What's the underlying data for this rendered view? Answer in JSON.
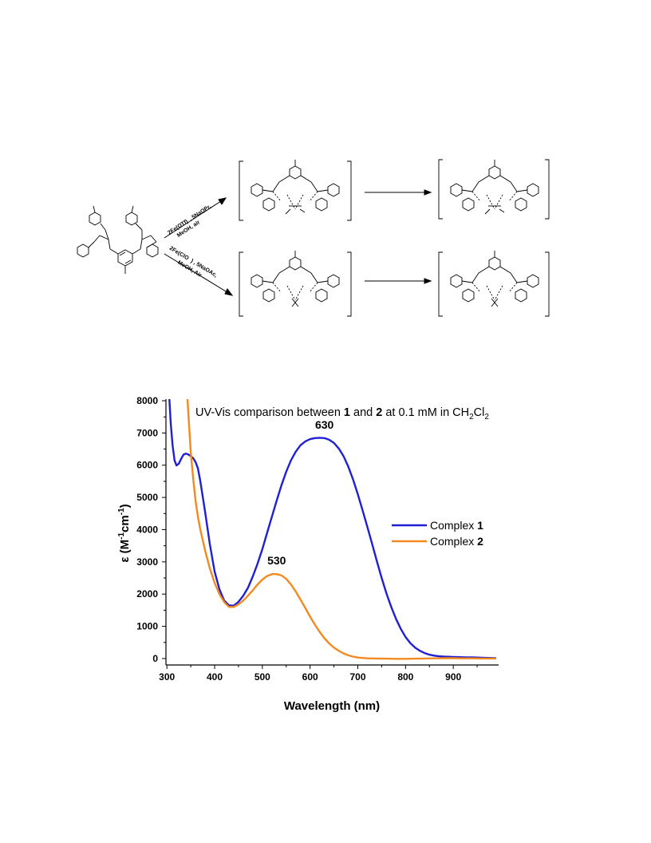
{
  "scheme": {
    "conditions_top": [
      "2Fe(OTf)",
      ", 5NaOPr,",
      "MeOH, air"
    ],
    "conditions_bottom": [
      "2Fe(ClO",
      ") , 5NaOAc,",
      "MeOH, Air"
    ]
  },
  "chart_data": {
    "type": "line",
    "title": {
      "parts": [
        "UV-Vis comparison between ",
        "1",
        " and ",
        "2",
        " at 0.1 mM in CH",
        "2",
        "Cl",
        "2"
      ]
    },
    "xlabel": "Wavelength (nm)",
    "ylabel": {
      "parts": [
        "ε (M",
        "-1",
        "cm",
        "-1",
        ")"
      ]
    },
    "xlim": [
      298,
      995
    ],
    "ylim": [
      -200,
      8050
    ],
    "x_ticks": [
      300,
      400,
      500,
      600,
      700,
      800,
      900
    ],
    "y_ticks": [
      0,
      1000,
      2000,
      3000,
      4000,
      5000,
      6000,
      7000,
      8000
    ],
    "tick_labels_x": [
      "300",
      "400",
      "500",
      "600",
      "700",
      "800",
      "900"
    ],
    "tick_labels_y": [
      "0",
      "1000",
      "2000",
      "3000",
      "4000",
      "5000",
      "6000",
      "7000",
      "8000"
    ],
    "legend_position": "center-right",
    "annotations": [
      {
        "text": "630",
        "x": 630,
        "y": 6840
      },
      {
        "text": "530",
        "x": 530,
        "y": 2620
      }
    ],
    "series": [
      {
        "name": {
          "prefix": "Complex ",
          "bold": "1"
        },
        "color": "#1f1fd6",
        "points": [
          [
            305,
            8100
          ],
          [
            308,
            7300
          ],
          [
            312,
            6600
          ],
          [
            316,
            6150
          ],
          [
            320,
            5990
          ],
          [
            325,
            6050
          ],
          [
            330,
            6200
          ],
          [
            335,
            6330
          ],
          [
            340,
            6360
          ],
          [
            345,
            6330
          ],
          [
            350,
            6280
          ],
          [
            355,
            6220
          ],
          [
            360,
            6100
          ],
          [
            365,
            5900
          ],
          [
            370,
            5500
          ],
          [
            380,
            4550
          ],
          [
            390,
            3550
          ],
          [
            400,
            2700
          ],
          [
            410,
            2150
          ],
          [
            420,
            1800
          ],
          [
            430,
            1650
          ],
          [
            440,
            1640
          ],
          [
            450,
            1760
          ],
          [
            460,
            1950
          ],
          [
            470,
            2200
          ],
          [
            480,
            2550
          ],
          [
            490,
            2950
          ],
          [
            500,
            3400
          ],
          [
            510,
            3900
          ],
          [
            520,
            4400
          ],
          [
            530,
            4900
          ],
          [
            540,
            5380
          ],
          [
            550,
            5800
          ],
          [
            560,
            6150
          ],
          [
            570,
            6420
          ],
          [
            580,
            6620
          ],
          [
            590,
            6740
          ],
          [
            600,
            6810
          ],
          [
            610,
            6840
          ],
          [
            620,
            6850
          ],
          [
            630,
            6840
          ],
          [
            640,
            6790
          ],
          [
            650,
            6690
          ],
          [
            660,
            6520
          ],
          [
            670,
            6280
          ],
          [
            680,
            5960
          ],
          [
            690,
            5560
          ],
          [
            700,
            5100
          ],
          [
            710,
            4600
          ],
          [
            720,
            4080
          ],
          [
            730,
            3550
          ],
          [
            740,
            3020
          ],
          [
            750,
            2500
          ],
          [
            760,
            2020
          ],
          [
            770,
            1600
          ],
          [
            780,
            1230
          ],
          [
            790,
            920
          ],
          [
            800,
            670
          ],
          [
            810,
            480
          ],
          [
            820,
            340
          ],
          [
            830,
            240
          ],
          [
            840,
            170
          ],
          [
            850,
            120
          ],
          [
            860,
            90
          ],
          [
            870,
            70
          ],
          [
            880,
            60
          ],
          [
            890,
            55
          ],
          [
            900,
            50
          ],
          [
            910,
            45
          ],
          [
            920,
            40
          ],
          [
            930,
            38
          ],
          [
            940,
            35
          ],
          [
            950,
            30
          ],
          [
            960,
            25
          ],
          [
            970,
            20
          ],
          [
            980,
            15
          ],
          [
            990,
            10
          ]
        ]
      },
      {
        "name": {
          "prefix": "Complex ",
          "bold": "2"
        },
        "color": "#f28a1f",
        "points": [
          [
            343,
            8100
          ],
          [
            345,
            7600
          ],
          [
            350,
            6400
          ],
          [
            355,
            5600
          ],
          [
            360,
            4900
          ],
          [
            365,
            4400
          ],
          [
            370,
            4000
          ],
          [
            380,
            3350
          ],
          [
            390,
            2800
          ],
          [
            400,
            2350
          ],
          [
            410,
            2000
          ],
          [
            420,
            1750
          ],
          [
            430,
            1600
          ],
          [
            440,
            1600
          ],
          [
            450,
            1680
          ],
          [
            460,
            1800
          ],
          [
            470,
            1950
          ],
          [
            480,
            2120
          ],
          [
            490,
            2300
          ],
          [
            500,
            2450
          ],
          [
            510,
            2560
          ],
          [
            520,
            2620
          ],
          [
            530,
            2620
          ],
          [
            540,
            2580
          ],
          [
            550,
            2470
          ],
          [
            560,
            2300
          ],
          [
            570,
            2080
          ],
          [
            580,
            1830
          ],
          [
            590,
            1570
          ],
          [
            600,
            1300
          ],
          [
            610,
            1050
          ],
          [
            620,
            830
          ],
          [
            630,
            630
          ],
          [
            640,
            470
          ],
          [
            650,
            340
          ],
          [
            660,
            240
          ],
          [
            670,
            160
          ],
          [
            680,
            100
          ],
          [
            690,
            60
          ],
          [
            700,
            30
          ],
          [
            720,
            5
          ],
          [
            740,
            0
          ],
          [
            760,
            -5
          ],
          [
            780,
            -10
          ],
          [
            800,
            -10
          ],
          [
            820,
            -5
          ],
          [
            840,
            0
          ],
          [
            860,
            5
          ],
          [
            880,
            10
          ],
          [
            900,
            10
          ],
          [
            920,
            5
          ],
          [
            940,
            5
          ],
          [
            960,
            0
          ],
          [
            980,
            0
          ],
          [
            990,
            0
          ]
        ]
      }
    ]
  }
}
